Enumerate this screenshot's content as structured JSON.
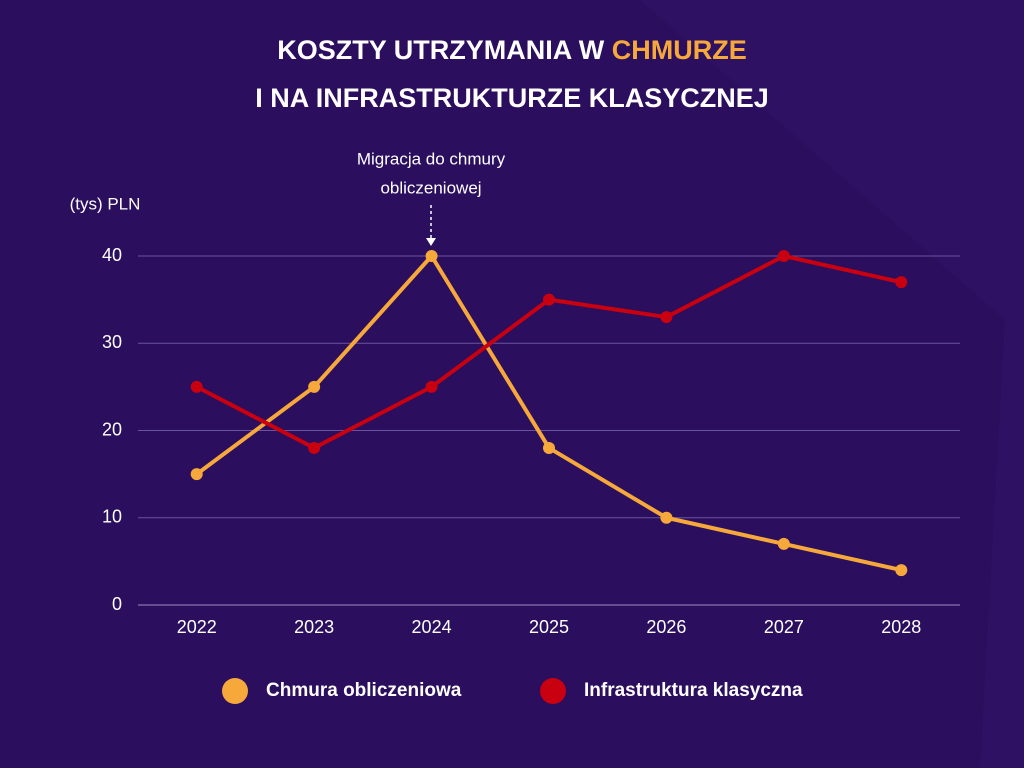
{
  "chart_data": {
    "type": "line",
    "title": [
      "KOSZTY UTRZYMANIA W",
      "CHMURZE",
      "I NA INFRASTRUKTURZE KLASYCZNEJ"
    ],
    "title_highlight_color": "#f7a83a",
    "y_label": "(tys) PLN",
    "annotation": [
      "Migracja do chmury",
      "obliczeniowej"
    ],
    "categories": [
      "2022",
      "2023",
      "2024",
      "2025",
      "2026",
      "2027",
      "2028"
    ],
    "series": [
      {
        "name": "Chmura obliczeniowa",
        "color": "#f7a83a",
        "values": [
          15,
          25,
          40,
          18,
          10,
          7,
          4
        ]
      },
      {
        "name": "Infrastruktura klasyczna",
        "color": "#c8000f",
        "values": [
          25,
          18,
          25,
          35,
          33,
          40,
          37
        ]
      }
    ],
    "ylim": [
      0,
      40
    ],
    "yticks": [
      0,
      10,
      20,
      30,
      40
    ],
    "grid": true,
    "legend": "bottom"
  }
}
